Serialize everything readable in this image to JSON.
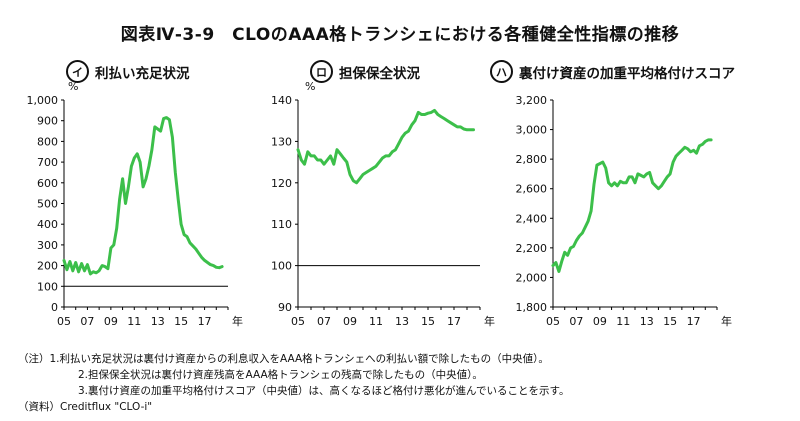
{
  "title": "図表Ⅳ-3-9　CLOのAAA格トランシェにおける各種健全性指標の推移",
  "panels": [
    {
      "badge": "イ",
      "title": "利払い充足状況"
    },
    {
      "badge": "ロ",
      "title": "担保保全状況"
    },
    {
      "badge": "ハ",
      "title": "裏付け資産の加重平均格付けスコア"
    }
  ],
  "notes": [
    "（注）1.利払い充足状況は裏付け資産からの利息収入をAAA格トランシェへの利払い額で除したもの（中央値）。",
    "2.担保保全状況は裏付け資産残高をAAA格トランシェの残高で除したもの（中央値）。",
    "3.裏付け資産の加重平均格付けスコア（中央値）は、高くなるほど格付け悪化が進んでいることを示す。",
    "（資料）Creditflux \"CLO-i\""
  ],
  "colors": {
    "series": "#3cbf4a",
    "axis": "#000000",
    "refline": "#000000"
  },
  "chart_data": [
    {
      "type": "line",
      "unit": "%",
      "x_ticks": [
        "05",
        "07",
        "09",
        "11",
        "13",
        "15",
        "17"
      ],
      "x_unit": "年",
      "ylim": [
        0,
        1000
      ],
      "y_ticks": [
        "0",
        "100",
        "200",
        "300",
        "400",
        "500",
        "600",
        "700",
        "800",
        "900",
        "1,000"
      ],
      "y_tick_values": [
        0,
        100,
        200,
        300,
        400,
        500,
        600,
        700,
        800,
        900,
        1000
      ],
      "reference_line": 100,
      "xlim": [
        2005,
        2019
      ],
      "x": [
        2005,
        2005.25,
        2005.5,
        2005.75,
        2006,
        2006.25,
        2006.5,
        2006.75,
        2007,
        2007.25,
        2007.5,
        2007.75,
        2008,
        2008.25,
        2008.5,
        2008.75,
        2009,
        2009.25,
        2009.5,
        2009.75,
        2010,
        2010.25,
        2010.5,
        2010.75,
        2011,
        2011.25,
        2011.5,
        2011.75,
        2012,
        2012.25,
        2012.5,
        2012.75,
        2013,
        2013.25,
        2013.5,
        2013.75,
        2014,
        2014.25,
        2014.5,
        2014.75,
        2015,
        2015.25,
        2015.5,
        2015.75,
        2016,
        2016.25,
        2016.5,
        2016.75,
        2017,
        2017.25,
        2017.5,
        2017.75,
        2018,
        2018.25,
        2018.5
      ],
      "values": [
        225,
        180,
        220,
        175,
        215,
        170,
        210,
        175,
        205,
        160,
        170,
        165,
        175,
        200,
        195,
        185,
        285,
        300,
        380,
        520,
        620,
        500,
        580,
        680,
        720,
        740,
        700,
        580,
        620,
        680,
        760,
        870,
        860,
        850,
        910,
        915,
        905,
        820,
        650,
        520,
        400,
        350,
        340,
        310,
        295,
        280,
        260,
        240,
        225,
        215,
        205,
        200,
        192,
        190,
        195
      ]
    },
    {
      "type": "line",
      "unit": "%",
      "x_ticks": [
        "05",
        "07",
        "09",
        "11",
        "13",
        "15",
        "17"
      ],
      "x_unit": "年",
      "ylim": [
        90,
        140
      ],
      "y_ticks": [
        "90",
        "100",
        "110",
        "120",
        "130",
        "140"
      ],
      "y_tick_values": [
        90,
        100,
        110,
        120,
        130,
        140
      ],
      "reference_line": 100,
      "xlim": [
        2005,
        2019
      ],
      "x": [
        2005,
        2005.25,
        2005.5,
        2005.75,
        2006,
        2006.25,
        2006.5,
        2006.75,
        2007,
        2007.25,
        2007.5,
        2007.75,
        2008,
        2008.25,
        2008.5,
        2008.75,
        2009,
        2009.25,
        2009.5,
        2009.75,
        2010,
        2010.25,
        2010.5,
        2010.75,
        2011,
        2011.25,
        2011.5,
        2011.75,
        2012,
        2012.25,
        2012.5,
        2012.75,
        2013,
        2013.25,
        2013.5,
        2013.75,
        2014,
        2014.25,
        2014.5,
        2014.75,
        2015,
        2015.25,
        2015.5,
        2015.75,
        2016,
        2016.25,
        2016.5,
        2016.75,
        2017,
        2017.25,
        2017.5,
        2017.75,
        2018,
        2018.25,
        2018.5
      ],
      "values": [
        128,
        125.5,
        124.5,
        127.5,
        126.5,
        126.5,
        125.5,
        125.5,
        124.5,
        125.5,
        126.5,
        124.5,
        128,
        127,
        126,
        125,
        122,
        120.5,
        120,
        121,
        122,
        122.5,
        123,
        123.5,
        124,
        125,
        126,
        126.5,
        126.5,
        127.5,
        128,
        129.5,
        131,
        132,
        132.5,
        134,
        135,
        137,
        136.5,
        136.5,
        136.8,
        137,
        137.5,
        136.5,
        136,
        135.5,
        135,
        134.5,
        134,
        133.5,
        133.5,
        133,
        132.8,
        132.8,
        132.8
      ]
    },
    {
      "type": "line",
      "x_ticks": [
        "05",
        "07",
        "09",
        "11",
        "13",
        "15",
        "17"
      ],
      "x_unit": "年",
      "ylim": [
        1800,
        3200
      ],
      "y_ticks": [
        "1,800",
        "2,000",
        "2,200",
        "2,400",
        "2,600",
        "2,800",
        "3,000",
        "3,200"
      ],
      "y_tick_values": [
        1800,
        2000,
        2200,
        2400,
        2600,
        2800,
        3000,
        3200
      ],
      "xlim": [
        2005,
        2019
      ],
      "x": [
        2005,
        2005.25,
        2005.5,
        2005.75,
        2006,
        2006.25,
        2006.5,
        2006.75,
        2007,
        2007.25,
        2007.5,
        2007.75,
        2008,
        2008.25,
        2008.5,
        2008.75,
        2009,
        2009.25,
        2009.5,
        2009.75,
        2010,
        2010.25,
        2010.5,
        2010.75,
        2011,
        2011.25,
        2011.5,
        2011.75,
        2012,
        2012.25,
        2012.5,
        2012.75,
        2013,
        2013.25,
        2013.5,
        2013.75,
        2014,
        2014.25,
        2014.5,
        2014.75,
        2015,
        2015.25,
        2015.5,
        2015.75,
        2016,
        2016.25,
        2016.5,
        2016.75,
        2017,
        2017.25,
        2017.5,
        2017.75,
        2018,
        2018.25,
        2018.5
      ],
      "values": [
        2080,
        2100,
        2040,
        2110,
        2170,
        2150,
        2200,
        2210,
        2250,
        2280,
        2300,
        2340,
        2380,
        2450,
        2630,
        2760,
        2770,
        2780,
        2740,
        2640,
        2620,
        2640,
        2620,
        2650,
        2640,
        2640,
        2680,
        2680,
        2640,
        2700,
        2690,
        2680,
        2700,
        2710,
        2640,
        2620,
        2600,
        2620,
        2650,
        2680,
        2700,
        2780,
        2820,
        2840,
        2860,
        2880,
        2870,
        2850,
        2860,
        2840,
        2890,
        2900,
        2920,
        2930,
        2930
      ]
    }
  ]
}
